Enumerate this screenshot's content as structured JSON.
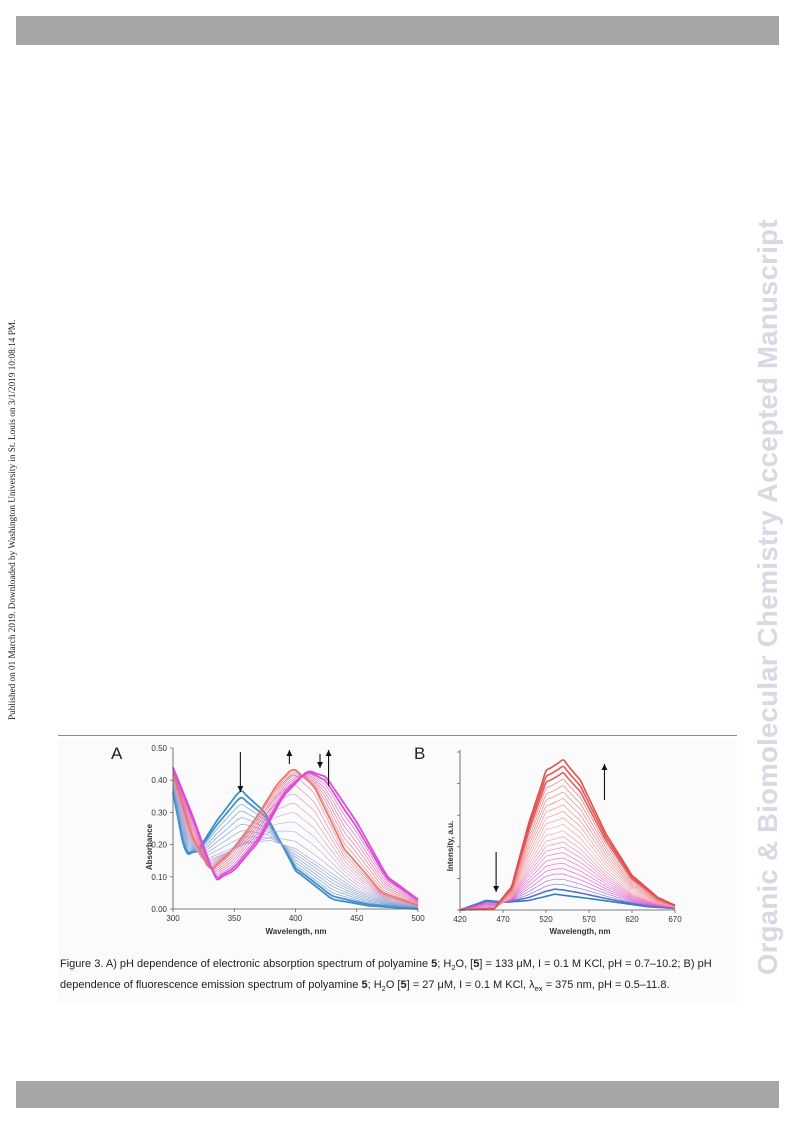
{
  "header": {
    "bar_color": "#a6a6a6"
  },
  "footer": {
    "bar_color": "#a6a6a6"
  },
  "side_note": "Published on 01 March 2019. Downloaded by Washington University in St. Louis on 3/1/2019 10:08:14 PM.",
  "watermark": "Organic & Biomolecular Chemistry Accepted Manuscript",
  "figure": {
    "panel_a_label": "A",
    "panel_b_label": "B",
    "caption": {
      "prefix": "Figure 3. A) pH dependence of electronic absorption spectrum of polyamine ",
      "compound": "5",
      "part1": "; H",
      "sub2": "2",
      "part2": "O, [",
      "compound2": "5",
      "part3": "] = 133 μM, I = 0.1 M KCl, pH = 0.7–10.2; B) pH dependence of fluorescence emission spectrum of polyamine ",
      "compound3": "5",
      "part4": "; H",
      "sub2b": "2",
      "part5": "O [",
      "compound4": "5",
      "part6": "] = 27 μM, I = 0.1 M KCl, λ",
      "sub_ex": "ex",
      "part7": " = 375 nm, pH = 0.5–11.8."
    }
  },
  "chart_data": [
    {
      "type": "line",
      "panel": "A",
      "title": "",
      "xlabel": "Wavelength, nm",
      "ylabel": "Absorbance",
      "xlim": [
        300,
        500
      ],
      "ylim": [
        0.0,
        0.5
      ],
      "x_ticks": [
        "300",
        "350",
        "400",
        "450",
        "500"
      ],
      "y_ticks": [
        "0.00",
        "0.10",
        "0.20",
        "0.30",
        "0.40",
        "0.50"
      ],
      "color_low_ph": "#3a8fc9",
      "color_mid_ph": "#e8766f",
      "color_high_ph": "#d94be0",
      "series": [
        {
          "values": [
            [
              300,
              0.36
            ],
            [
              310,
              0.17
            ],
            [
              320,
              0.18
            ],
            [
              335,
              0.27
            ],
            [
              355,
              0.37
            ],
            [
              375,
              0.3
            ],
            [
              400,
              0.12
            ],
            [
              430,
              0.03
            ],
            [
              460,
              0.01
            ],
            [
              500,
              0.0
            ]
          ]
        },
        {
          "values": [
            [
              300,
              0.4
            ],
            [
              312,
              0.22
            ],
            [
              325,
              0.15
            ],
            [
              340,
              0.17
            ],
            [
              360,
              0.2
            ],
            [
              380,
              0.21
            ],
            [
              400,
              0.19
            ],
            [
              420,
              0.14
            ],
            [
              450,
              0.06
            ],
            [
              480,
              0.02
            ],
            [
              500,
              0.01
            ]
          ]
        },
        {
          "values": [
            [
              300,
              0.42
            ],
            [
              315,
              0.23
            ],
            [
              330,
              0.12
            ],
            [
              345,
              0.17
            ],
            [
              365,
              0.27
            ],
            [
              385,
              0.39
            ],
            [
              398,
              0.44
            ],
            [
              415,
              0.38
            ],
            [
              440,
              0.18
            ],
            [
              470,
              0.05
            ],
            [
              500,
              0.01
            ]
          ]
        },
        {
          "values": [
            [
              300,
              0.44
            ],
            [
              315,
              0.3
            ],
            [
              335,
              0.09
            ],
            [
              350,
              0.12
            ],
            [
              370,
              0.21
            ],
            [
              390,
              0.35
            ],
            [
              410,
              0.43
            ],
            [
              425,
              0.41
            ],
            [
              450,
              0.27
            ],
            [
              475,
              0.1
            ],
            [
              500,
              0.03
            ]
          ]
        }
      ],
      "annotations": [
        "arrow-down-355",
        "arrow-up-395",
        "arrow-down-420",
        "arrow-up-427"
      ]
    },
    {
      "type": "line",
      "panel": "B",
      "title": "",
      "xlabel": "Wavelength, nm",
      "ylabel": "Intensity, a.u.",
      "xlim": [
        420,
        670
      ],
      "x_ticks": [
        "420",
        "470",
        "520",
        "570",
        "620",
        "670"
      ],
      "series": [
        {
          "values": [
            [
              420,
              0.0
            ],
            [
              450,
              0.06
            ],
            [
              475,
              0.05
            ],
            [
              500,
              0.06
            ],
            [
              530,
              0.1
            ],
            [
              560,
              0.08
            ],
            [
              600,
              0.05
            ],
            [
              640,
              0.02
            ],
            [
              670,
              0.01
            ]
          ]
        },
        {
          "values": [
            [
              420,
              0.0
            ],
            [
              460,
              0.01
            ],
            [
              480,
              0.08
            ],
            [
              500,
              0.28
            ],
            [
              520,
              0.45
            ],
            [
              540,
              0.48
            ],
            [
              560,
              0.4
            ],
            [
              590,
              0.23
            ],
            [
              620,
              0.1
            ],
            [
              650,
              0.04
            ],
            [
              670,
              0.02
            ]
          ]
        },
        {
          "values": [
            [
              420,
              0.0
            ],
            [
              460,
              0.01
            ],
            [
              480,
              0.15
            ],
            [
              500,
              0.55
            ],
            [
              520,
              0.88
            ],
            [
              540,
              0.95
            ],
            [
              560,
              0.82
            ],
            [
              590,
              0.48
            ],
            [
              620,
              0.22
            ],
            [
              650,
              0.08
            ],
            [
              670,
              0.03
            ]
          ]
        }
      ],
      "annotations": [
        "arrow-down-462",
        "arrow-up-588"
      ]
    }
  ]
}
